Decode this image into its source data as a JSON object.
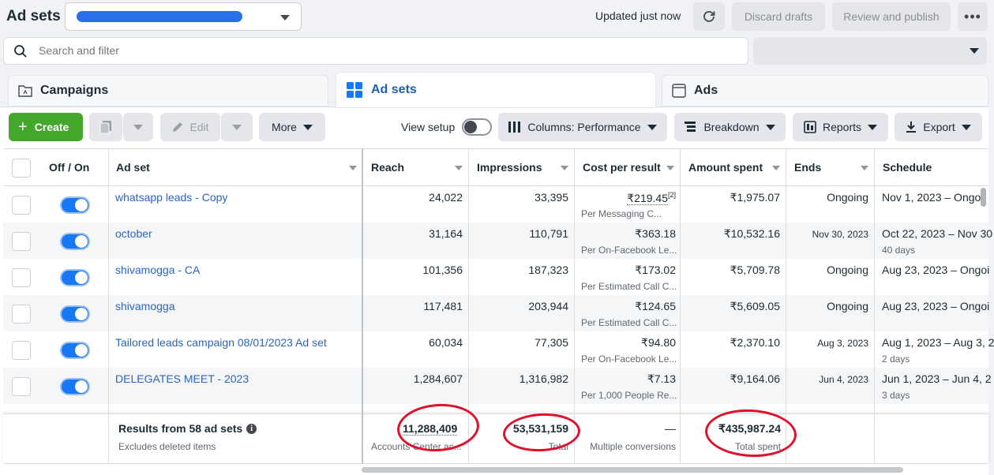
{
  "header": {
    "title": "Ad sets",
    "updated": "Updated just now",
    "discard_label": "Discard drafts",
    "review_label": "Review and publish",
    "more_label": "•••"
  },
  "search": {
    "placeholder": "Search and filter"
  },
  "tabs": [
    {
      "label": "Campaigns",
      "icon": "folder-icon"
    },
    {
      "label": "Ad sets",
      "icon": "grid-icon",
      "active": true
    },
    {
      "label": "Ads",
      "icon": "ad-card-icon"
    }
  ],
  "toolbar": {
    "create": "Create",
    "edit": "Edit",
    "more": "More",
    "view_setup": "View setup",
    "columns": "Columns: Performance",
    "breakdown": "Breakdown",
    "reports": "Reports",
    "export": "Export"
  },
  "colors": {
    "accent": "#1877f2",
    "create_green": "#42a72a",
    "link": "#2d64bc",
    "annotation": "#e0102b"
  },
  "table": {
    "columns": [
      "Off / On",
      "Ad set",
      "Reach",
      "Impressions",
      "Cost per result",
      "Amount spent",
      "Ends",
      "Schedule"
    ],
    "rows": [
      {
        "name": "whatsapp leads - Copy",
        "reach": "24,022",
        "impressions": "33,395",
        "cost": "₹219.45",
        "cost_note": "[2]",
        "cost_sub": "Per Messaging C...",
        "spent": "₹1,975.07",
        "ends": "Ongoing",
        "schedule": "Nov 1, 2023 – Ongoi",
        "schedule_sub": ""
      },
      {
        "name": "october",
        "reach": "31,164",
        "impressions": "110,791",
        "cost": "₹363.18",
        "cost_sub": "Per On-Facebook Le...",
        "spent": "₹10,532.16",
        "ends": "Nov 30, 2023",
        "schedule": "Oct 22, 2023 – Nov 30",
        "schedule_sub": "40 days"
      },
      {
        "name": "shivamogga - CA",
        "reach": "101,356",
        "impressions": "187,323",
        "cost": "₹173.02",
        "cost_sub": "Per Estimated Call C...",
        "spent": "₹5,709.78",
        "ends": "Ongoing",
        "schedule": "Aug 23, 2023 – Ongoi",
        "schedule_sub": ""
      },
      {
        "name": "shivamogga",
        "reach": "117,481",
        "impressions": "203,944",
        "cost": "₹124.65",
        "cost_sub": "Per Estimated Call C...",
        "spent": "₹5,609.05",
        "ends": "Ongoing",
        "schedule": "Aug 23, 2023 – Ongoi",
        "schedule_sub": ""
      },
      {
        "name": "Tailored leads campaign 08/01/2023 Ad set",
        "reach": "60,034",
        "impressions": "77,305",
        "cost": "₹94.80",
        "cost_sub": "Per On-Facebook Le...",
        "spent": "₹2,370.10",
        "ends": "Aug 3, 2023",
        "schedule": "Aug 1, 2023 – Aug 3, 2",
        "schedule_sub": "2 days"
      },
      {
        "name": "DELEGATES MEET - 2023",
        "reach": "1,284,607",
        "impressions": "1,316,982",
        "cost": "₹7.13",
        "cost_sub": "Per 1,000 People Re...",
        "spent": "₹9,164.06",
        "ends": "Jun 4, 2023",
        "schedule": "Jun 1, 2023 – Jun 4, 2",
        "schedule_sub": "3 days"
      }
    ]
  },
  "summary": {
    "title": "Results from 58 ad sets",
    "subtitle": "Excludes deleted items",
    "reach": "11,288,409",
    "reach_sub": "Accounts Center ac...",
    "impressions": "53,531,159",
    "impressions_sub": "Total",
    "cost": "—",
    "cost_sub": "Multiple conversions",
    "spent": "₹435,987.24",
    "spent_sub": "Total spent"
  }
}
